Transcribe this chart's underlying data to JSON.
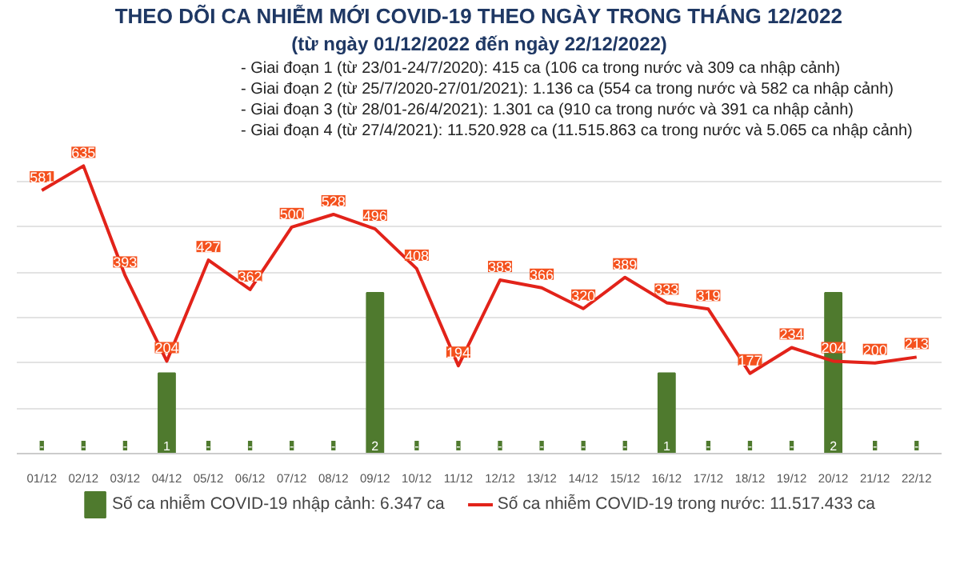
{
  "chart_data": {
    "type": "bar",
    "title": "THEO DÕI CA NHIỄM MỚI COVID-19 THEO NGÀY TRONG THÁNG 12/2022",
    "subtitle": "(từ ngày 01/12/2022 đến ngày 22/12/2022)",
    "annotations": [
      "- Giai đoạn 1 (từ 23/01-24/7/2020): 415 ca (106 ca trong nước và 309 ca nhập cảnh)",
      "- Giai đoạn 2 (từ 25/7/2020-27/01/2021): 1.136 ca (554 ca trong nước và 582 ca nhập cảnh)",
      "- Giai đoạn 3 (từ 28/01-26/4/2021): 1.301 ca (910 ca trong nước và 391 ca nhập cảnh)",
      "- Giai đoạn 4 (từ 27/4/2021): 11.520.928 ca (11.515.863 ca trong nước và 5.065 ca nhập cảnh)"
    ],
    "categories": [
      "01/12",
      "02/12",
      "03/12",
      "04/12",
      "05/12",
      "06/12",
      "07/12",
      "08/12",
      "09/12",
      "10/12",
      "11/12",
      "12/12",
      "13/12",
      "14/12",
      "15/12",
      "16/12",
      "17/12",
      "18/12",
      "19/12",
      "20/12",
      "21/12",
      "22/12"
    ],
    "series": [
      {
        "name": "Số ca nhiễm COVID-19 nhập cảnh: 6.347 ca",
        "axis": "y2",
        "color": "#4f7a2e",
        "values": [
          0,
          0,
          0,
          1,
          0,
          0,
          0,
          0,
          2,
          0,
          0,
          0,
          0,
          0,
          0,
          1,
          0,
          0,
          0,
          2,
          0,
          0
        ],
        "value_labels": [
          "-",
          "-",
          "-",
          "1",
          "-",
          "-",
          "-",
          "-",
          "2",
          "-",
          "-",
          "-",
          "-",
          "-",
          "-",
          "1",
          "-",
          "-",
          "-",
          "2",
          "-",
          "-"
        ]
      },
      {
        "name": "Số ca nhiễm COVID-19 trong nước: 11.517.433 ca",
        "type": "line",
        "color": "#e2231a",
        "values": [
          581,
          635,
          393,
          204,
          427,
          362,
          500,
          528,
          496,
          408,
          194,
          383,
          366,
          320,
          389,
          333,
          319,
          177,
          234,
          204,
          200,
          213
        ]
      }
    ],
    "data_labels": true,
    "grid": "y",
    "tick_labels": "x",
    "legend": "bottom",
    "line_style": "solid"
  }
}
